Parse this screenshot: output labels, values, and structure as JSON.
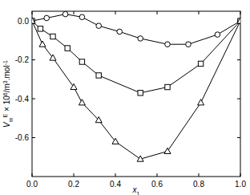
{
  "chart_data": {
    "type": "line",
    "x_label": [
      "x",
      "1"
    ],
    "y_label": [
      "V",
      "m",
      "E",
      " × 10",
      "6",
      "/m",
      "3",
      ".mol",
      "-1"
    ],
    "xlim": [
      0,
      1
    ],
    "ylim": [
      -0.8,
      0.05
    ],
    "xticks": [
      {
        "value": 0,
        "label": "0.0"
      },
      {
        "value": 0.2,
        "label": "0.2"
      },
      {
        "value": 0.4,
        "label": "0.4"
      },
      {
        "value": 0.6,
        "label": "0.6"
      },
      {
        "value": 0.8,
        "label": "0.8"
      },
      {
        "value": 1,
        "label": "1.0"
      }
    ],
    "yticks": [
      {
        "value": 0,
        "label": "0.0"
      },
      {
        "value": -0.2,
        "label": "-0.2"
      },
      {
        "value": -0.4,
        "label": "-0.4"
      },
      {
        "value": -0.6,
        "label": "-0.6"
      }
    ],
    "series": [
      {
        "marker": "circle",
        "color": "#000000",
        "x": [
          0,
          0.07,
          0.16,
          0.24,
          0.32,
          0.42,
          0.52,
          0.65,
          0.75,
          0.89,
          1
        ],
        "values": [
          0,
          0.015,
          0.035,
          0.02,
          -0.025,
          -0.055,
          -0.09,
          -0.12,
          -0.12,
          -0.07,
          0
        ]
      },
      {
        "marker": "square",
        "color": "#000000",
        "x": [
          0,
          0.04,
          0.1,
          0.17,
          0.24,
          0.32,
          0.52,
          0.65,
          0.81,
          1
        ],
        "values": [
          0,
          -0.04,
          -0.08,
          -0.14,
          -0.21,
          -0.28,
          -0.37,
          -0.34,
          -0.22,
          0
        ]
      },
      {
        "marker": "triangle",
        "color": "#000000",
        "x": [
          0,
          0.05,
          0.1,
          0.2,
          0.24,
          0.32,
          0.4,
          0.52,
          0.65,
          0.81,
          1
        ],
        "values": [
          0,
          -0.12,
          -0.19,
          -0.34,
          -0.42,
          -0.51,
          -0.62,
          -0.71,
          -0.67,
          -0.42,
          0
        ]
      }
    ]
  }
}
